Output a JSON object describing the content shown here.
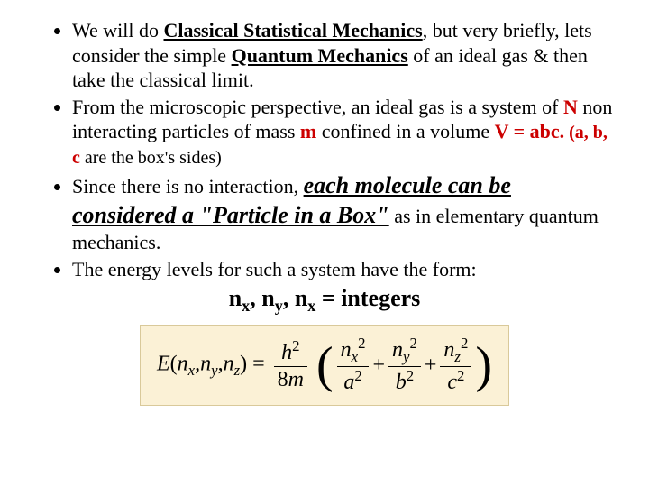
{
  "bullets": {
    "b1": {
      "pre": "We will do ",
      "csmech": "Classical Statistical Mechanics",
      "mid1": ", but very briefly, lets consider the simple ",
      "qmech": "Quantum Mechanics",
      "post": " of an ideal gas & then take the classical limit."
    },
    "b2": {
      "pre": "From the microscopic perspective, an ideal gas is a system of ",
      "N": "N",
      "mid1": " non interacting particles of mass ",
      "m": "m",
      "mid2": " confined in a volume ",
      "Vabc": "V = abc.",
      "paren": " (a, b, c",
      "parentail": " are the box's sides)"
    },
    "b3": {
      "pre": "Since there is no interaction, ",
      "emph": "each molecule can be considered a \"Particle in a Box\"",
      "post": " as in elementary quantum mechanics."
    },
    "b4": {
      "text": "The energy levels for such a system have the form:"
    }
  },
  "integers_line": {
    "n": "n",
    "x": "x",
    "c1": ", ",
    "y": "y",
    "c2": ", ",
    "eq": " = integers"
  },
  "formula": {
    "E": "E",
    "lp": "(",
    "n": "n",
    "x": "x",
    "c": ",",
    "y": "y",
    "z": "z",
    "rp": ")",
    "eq": " = ",
    "h": "h",
    "two": "2",
    "eight": "8",
    "m": "m",
    "a": "a",
    "b": "b",
    "c2": "c",
    "plus": " + "
  },
  "colors": {
    "formula_bg": "#fbf1d6",
    "formula_border": "#d9c99a",
    "red": "#cc0000"
  }
}
